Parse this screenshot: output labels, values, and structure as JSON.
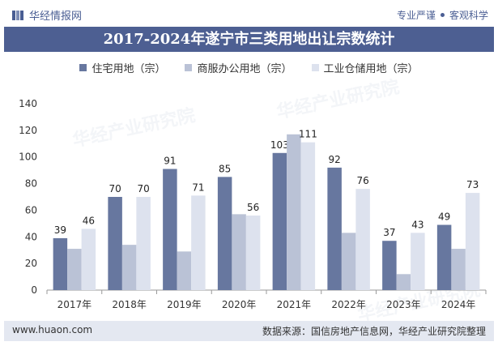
{
  "header": {
    "brand": "华经情报网",
    "slogan_left": "专业严谨",
    "slogan_right": "客观科学"
  },
  "colors": {
    "series1": "#67779f",
    "series2": "#bac2d6",
    "series3": "#dde2ee",
    "title_bar": "#4d5f92",
    "footer_bg": "#e4e8f1"
  },
  "chart_data": {
    "type": "bar",
    "title": "2017-2024年遂宁市三类用地出让宗数统计",
    "categories": [
      "2017年",
      "2018年",
      "2019年",
      "2020年",
      "2021年",
      "2022年",
      "2023年",
      "2024年"
    ],
    "series": [
      {
        "name": "住宅用地（宗）",
        "values": [
          39,
          70,
          91,
          85,
          103,
          92,
          37,
          49
        ],
        "labeled": true
      },
      {
        "name": "商服办公用地（宗）",
        "values": [
          31,
          34,
          29,
          57,
          117,
          43,
          12,
          31
        ],
        "labeled": false
      },
      {
        "name": "工业仓储用地（宗）",
        "values": [
          46,
          70,
          71,
          56,
          111,
          76,
          43,
          73
        ],
        "labeled": true
      }
    ],
    "ylim": [
      0,
      140
    ],
    "yticks": [
      0,
      20,
      40,
      60,
      80,
      100,
      120,
      140
    ],
    "xlabel": "",
    "ylabel": "",
    "legend": "top-center",
    "grid": false
  },
  "footer": {
    "website": "www.huaon.com",
    "source": "数据来源：国信房地产信息网，华经产业研究院整理"
  },
  "watermark": {
    "text1": "华经产业研究院",
    "text2": "www.huaon.com"
  }
}
